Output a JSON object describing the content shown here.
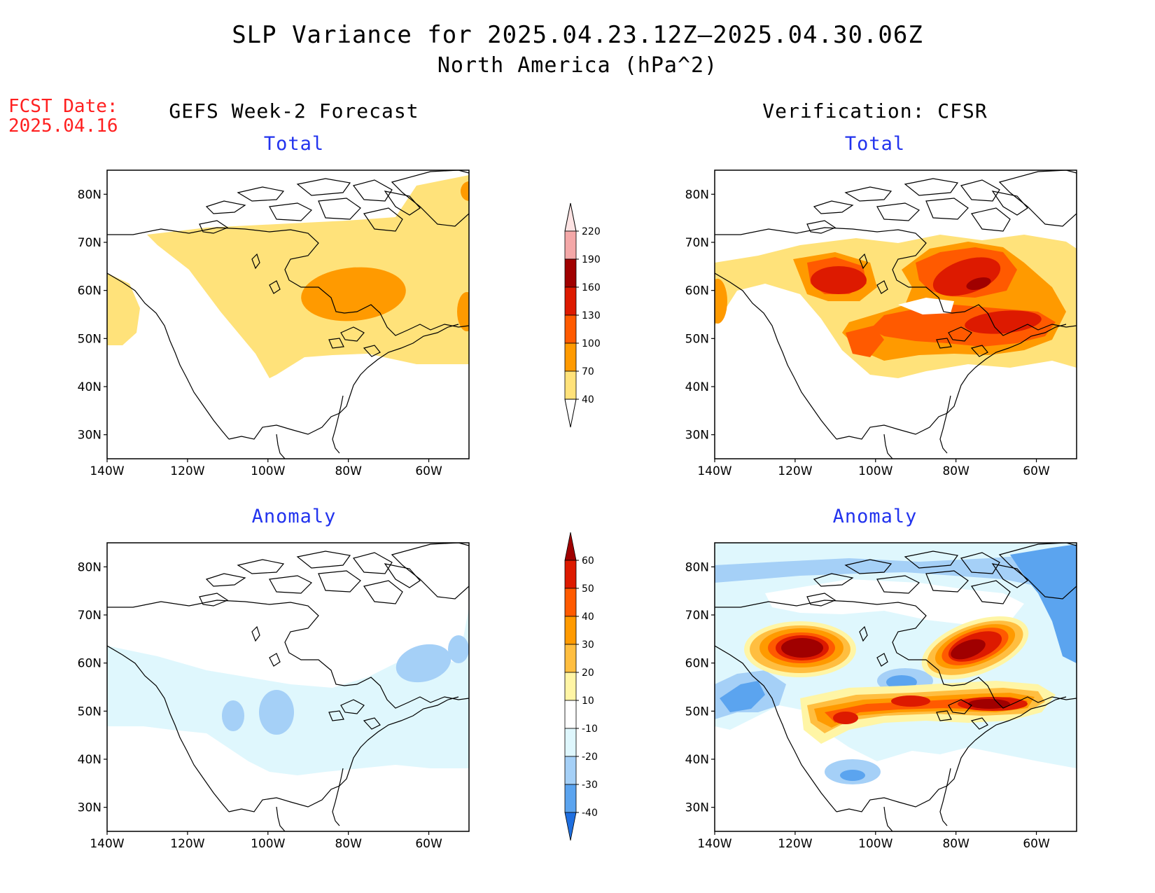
{
  "header": {
    "title": "SLP Variance for 2025.04.23.12Z–2025.04.30.06Z",
    "subtitle": "North America (hPa^2)",
    "fcst_label": "FCST Date:",
    "fcst_date": "2025.04.16"
  },
  "columns": {
    "left": "GEFS Week-2 Forecast",
    "right": "Verification: CFSR"
  },
  "panels": {
    "total_label": "Total",
    "anomaly_label": "Anomaly"
  },
  "axes": {
    "lat_labels": [
      "80N",
      "70N",
      "60N",
      "50N",
      "40N",
      "30N"
    ],
    "lon_labels": [
      "140W",
      "120W",
      "100W",
      "80W",
      "60W"
    ]
  },
  "colorbar_total": {
    "levels": [
      "220",
      "190",
      "160",
      "130",
      "100",
      "70",
      "40"
    ],
    "colors": [
      "#f4a8a8",
      "#a00000",
      "#dd1a00",
      "#ff5a00",
      "#ff9a00",
      "#ffe27a"
    ]
  },
  "colorbar_anomaly": {
    "levels": [
      "60",
      "50",
      "40",
      "30",
      "20",
      "10",
      "-10",
      "-20",
      "-30",
      "-40"
    ],
    "colors": [
      "#a00000",
      "#dd1a00",
      "#ff5a00",
      "#ff9a00",
      "#ffbe40",
      "#fff5a5",
      "#ffffff",
      "#dff7fd",
      "#a5d0f7",
      "#5ba4ef",
      "#1f6fe0"
    ]
  },
  "colors": {
    "title_red": "#ff2020",
    "label_blue": "#2233ee"
  }
}
